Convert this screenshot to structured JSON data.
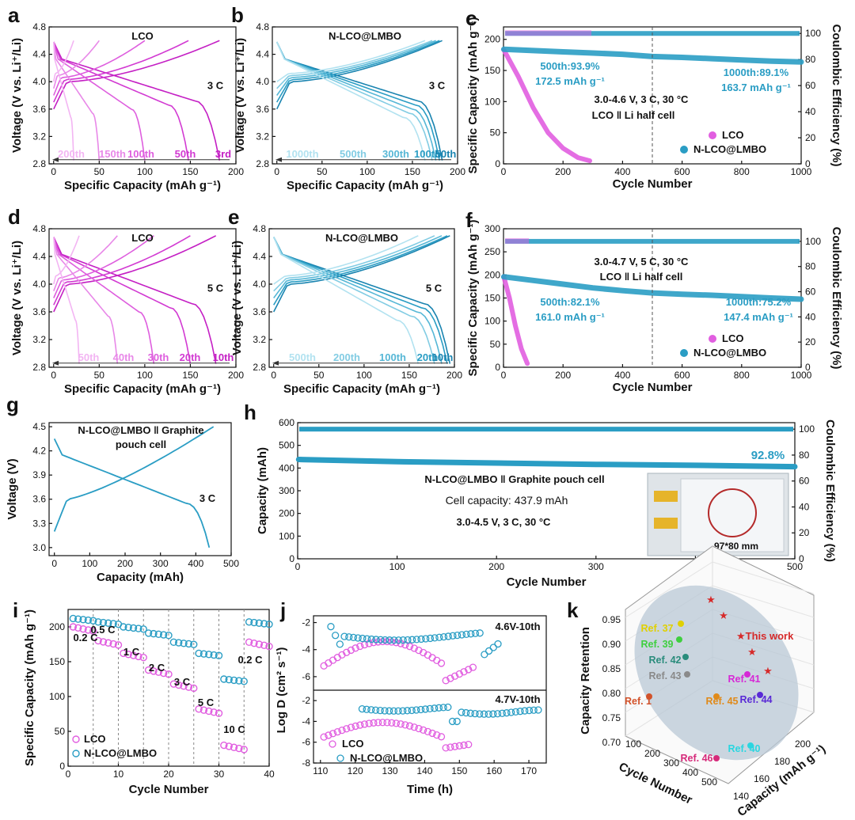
{
  "colors": {
    "pink": "#e15ee0",
    "magenta": "#c41fc4",
    "light_pink": "#f3a8f2",
    "cyan": "#2a9dc4",
    "light_cyan": "#9fdcee",
    "dark": "#111111",
    "red_star": "#d62a2a",
    "ellipse": "#b9c8d6"
  },
  "chart_data": [
    {
      "panel": "a",
      "type": "line",
      "title": "LCO",
      "rate": "3 C",
      "xlabel": "Specific Capacity (mAh g⁻¹)",
      "ylabel": "Voltage (V vs. Li⁺/Li)",
      "xlim": [
        -5,
        200
      ],
      "ylim": [
        2.8,
        4.8
      ],
      "xticks": [
        "0",
        "50",
        "100",
        "150",
        "200"
      ],
      "yticks": [
        "2.8",
        "3.2",
        "3.6",
        "4.0",
        "4.4",
        "4.8"
      ],
      "cycle_labels": [
        "200th",
        "150th",
        "100th",
        "50th",
        "3rd"
      ],
      "series": [
        {
          "name": "3rd",
          "capacity": 182
        },
        {
          "name": "50th",
          "capacity": 148
        },
        {
          "name": "100th",
          "capacity": 100
        },
        {
          "name": "150th",
          "capacity": 50
        },
        {
          "name": "200th",
          "capacity": 22
        }
      ]
    },
    {
      "panel": "b",
      "type": "line",
      "title": "N-LCO@LMBO",
      "rate": "3 C",
      "xlabel": "Specific Capacity (mAh g⁻¹)",
      "ylabel": "Voltage (V vs. Li⁺/Li)",
      "xlim": [
        -5,
        200
      ],
      "ylim": [
        2.8,
        4.8
      ],
      "xticks": [
        "0",
        "50",
        "100",
        "150",
        "200"
      ],
      "yticks": [
        "2.8",
        "3.2",
        "3.6",
        "4.0",
        "4.4",
        "4.8"
      ],
      "cycle_labels": [
        "1000th",
        "500th",
        "300th",
        "100th",
        "50th"
      ],
      "series": [
        {
          "name": "50th",
          "capacity": 183
        },
        {
          "name": "100th",
          "capacity": 180
        },
        {
          "name": "300th",
          "capacity": 176
        },
        {
          "name": "500th",
          "capacity": 172
        },
        {
          "name": "1000th",
          "capacity": 164
        }
      ]
    },
    {
      "panel": "c",
      "type": "scatter",
      "xlabel": "Cycle Number",
      "ylabel": "Specific Capacity (mAh g⁻¹)",
      "y2label": "Coulombic Efficiency (%)",
      "xlim": [
        0,
        1000
      ],
      "ylim": [
        0,
        220
      ],
      "y2lim": [
        0,
        105
      ],
      "xticks": [
        "0",
        "200",
        "400",
        "600",
        "800",
        "1000"
      ],
      "yticks": [
        "0",
        "50",
        "100",
        "150",
        "200"
      ],
      "y2ticks": [
        "0",
        "20",
        "40",
        "60",
        "80",
        "100"
      ],
      "annotations": [
        "500th:93.9%",
        "172.5 mAh g⁻¹",
        "1000th:89.1%",
        "163.7 mAh g⁻¹",
        "3.0-4.6 V, 3 C, 30 °C",
        "LCO ‖ Li half cell"
      ],
      "legend": [
        "LCO",
        "N-LCO@LMBO"
      ],
      "series": [
        {
          "name": "LCO",
          "x": [
            1,
            50,
            100,
            150,
            200,
            250,
            290
          ],
          "y": [
            183,
            140,
            90,
            50,
            25,
            10,
            5
          ]
        },
        {
          "name": "N-LCO@LMBO",
          "x": [
            1,
            100,
            200,
            300,
            400,
            500,
            600,
            700,
            800,
            900,
            1000
          ],
          "y": [
            184,
            182,
            180,
            178,
            176,
            172.5,
            171,
            169,
            167,
            165,
            163.7
          ]
        }
      ]
    },
    {
      "panel": "d",
      "type": "line",
      "title": "LCO",
      "rate": "5 C",
      "xlabel": "Specific Capacity (mAh g⁻¹)",
      "ylabel": "Voltage (V vs. Li⁺/Li)",
      "xlim": [
        -5,
        200
      ],
      "ylim": [
        2.8,
        4.8
      ],
      "xticks": [
        "0",
        "50",
        "100",
        "150",
        "200"
      ],
      "yticks": [
        "2.8",
        "3.2",
        "3.6",
        "4.0",
        "4.4",
        "4.8"
      ],
      "cycle_labels": [
        "50th",
        "40th",
        "30th",
        "20th",
        "10th"
      ],
      "series": [
        {
          "name": "10th",
          "capacity": 178
        },
        {
          "name": "20th",
          "capacity": 150
        },
        {
          "name": "30th",
          "capacity": 110
        },
        {
          "name": "40th",
          "capacity": 70
        },
        {
          "name": "50th",
          "capacity": 28
        }
      ]
    },
    {
      "panel": "e",
      "type": "line",
      "title": "N-LCO@LMBO",
      "rate": "5 C",
      "xlabel": "Specific Capacity (mAh g⁻¹)",
      "ylabel": "Voltage (V vs. Li⁺/Li)",
      "xlim": [
        -5,
        200
      ],
      "ylim": [
        2.8,
        4.8
      ],
      "xticks": [
        "0",
        "50",
        "100",
        "150",
        "200"
      ],
      "yticks": [
        "2.8",
        "3.2",
        "3.6",
        "4.0",
        "4.4",
        "4.8"
      ],
      "cycle_labels": [
        "500th",
        "200th",
        "100th",
        "20th",
        "10th"
      ],
      "series": [
        {
          "name": "10th",
          "capacity": 195
        },
        {
          "name": "20th",
          "capacity": 192
        },
        {
          "name": "100th",
          "capacity": 186
        },
        {
          "name": "200th",
          "capacity": 178
        },
        {
          "name": "500th",
          "capacity": 160
        }
      ]
    },
    {
      "panel": "f",
      "type": "scatter",
      "xlabel": "Cycle Number",
      "ylabel": "Specific Capacity (mAh g⁻¹)",
      "y2label": "Coulombic Efficiency (%)",
      "xlim": [
        0,
        1000
      ],
      "ylim": [
        0,
        300
      ],
      "y2lim": [
        0,
        110
      ],
      "xticks": [
        "0",
        "200",
        "400",
        "600",
        "800",
        "1000"
      ],
      "yticks": [
        "0",
        "50",
        "100",
        "150",
        "200",
        "250",
        "300"
      ],
      "y2ticks": [
        "0",
        "20",
        "40",
        "60",
        "80",
        "100"
      ],
      "annotations": [
        "3.0-4.7 V, 5 C, 30 °C",
        "LCO ‖ Li half cell",
        "500th:82.1%",
        "161.0 mAh g⁻¹",
        "1000th:75.2%",
        "147.4 mAh g⁻¹"
      ],
      "legend": [
        "LCO",
        "N-LCO@LMBO"
      ],
      "series": [
        {
          "name": "LCO",
          "x": [
            1,
            20,
            40,
            60,
            80
          ],
          "y": [
            196,
            150,
            90,
            40,
            8
          ]
        },
        {
          "name": "N-LCO@LMBO",
          "x": [
            1,
            100,
            200,
            300,
            400,
            500,
            600,
            700,
            800,
            900,
            1000
          ],
          "y": [
            196,
            188,
            180,
            172,
            166,
            161,
            158,
            156,
            153,
            150,
            147.4
          ]
        }
      ]
    },
    {
      "panel": "g",
      "type": "line",
      "title_lines": [
        "N-LCO@LMBO ‖ Graphite",
        "pouch cell"
      ],
      "rate": "3 C",
      "xlabel": "Capacity (mAh)",
      "ylabel": "Voltage (V)",
      "xlim": [
        -15,
        500
      ],
      "ylim": [
        2.9,
        4.55
      ],
      "xticks": [
        "0",
        "100",
        "200",
        "300",
        "400",
        "500"
      ],
      "yticks": [
        "3.0",
        "3.3",
        "3.6",
        "3.9",
        "4.2",
        "4.5"
      ]
    },
    {
      "panel": "h",
      "type": "scatter",
      "xlabel": "Cycle Number",
      "ylabel": "Capacity (mAh)",
      "y2label": "Coulombic Efficiency (%)",
      "xlim": [
        0,
        500
      ],
      "ylim": [
        0,
        600
      ],
      "y2lim": [
        0,
        105
      ],
      "xticks": [
        "0",
        "100",
        "200",
        "300",
        "400",
        "500"
      ],
      "yticks": [
        "0",
        "100",
        "200",
        "300",
        "400",
        "500",
        "600"
      ],
      "y2ticks": [
        "0",
        "20",
        "40",
        "60",
        "80",
        "100"
      ],
      "annotations": [
        "N-LCO@LMBO ‖ Graphite pouch cell",
        "Cell capacity: 437.9 mAh",
        "3.0-4.5 V, 3 C, 30 °C",
        "92.8%",
        "97*80 mm"
      ],
      "series": [
        {
          "name": "Capacity",
          "x": [
            1,
            100,
            200,
            300,
            400,
            500
          ],
          "y": [
            437.9,
            428,
            422,
            416,
            412,
            406
          ]
        }
      ]
    },
    {
      "panel": "i",
      "type": "scatter",
      "xlabel": "Cycle Number",
      "ylabel": "Specific Capacity (mAh g⁻¹)",
      "xlim": [
        0,
        40
      ],
      "ylim": [
        0,
        225
      ],
      "xticks": [
        "0",
        "10",
        "20",
        "30",
        "40"
      ],
      "yticks": [
        "0",
        "50",
        "100",
        "150",
        "200"
      ],
      "rate_labels": [
        "0.2 C",
        "0.5 C",
        "1 C",
        "2 C",
        "3 C",
        "5 C",
        "10 C",
        "0.2 C"
      ],
      "legend": [
        "LCO",
        "N-LCO@LMBO"
      ],
      "series": [
        {
          "name": "LCO",
          "values": [
            200,
            180,
            162,
            138,
            118,
            82,
            30,
            178
          ]
        },
        {
          "name": "N-LCO@LMBO",
          "values": [
            212,
            207,
            200,
            191,
            178,
            162,
            125,
            207
          ]
        }
      ]
    },
    {
      "panel": "j",
      "type": "scatter",
      "xlabel": "Time (h)",
      "ylabel": "Log D (cm² s⁻¹)",
      "xticks": [
        "110",
        "120",
        "130",
        "140",
        "150",
        "160",
        "170"
      ],
      "top_label": "4.6V-10th",
      "bottom_label": "4.7V-10th",
      "top_yticks": [
        "-2",
        "-4",
        "-6"
      ],
      "bottom_yticks": [
        "-2",
        "-4",
        "-6",
        "-8"
      ],
      "legend": [
        "LCO",
        "N-LCO@LMBO"
      ]
    },
    {
      "panel": "k",
      "type": "scatter",
      "zlabel": "Capacity Retention",
      "xlabel": "Cycle Number",
      "ylabel": "Capacity (mAh g⁻¹)",
      "zticks": [
        "0.70",
        "0.75",
        "0.80",
        "0.85",
        "0.90",
        "0.95"
      ],
      "xticks": [
        "100",
        "200",
        "300",
        "400",
        "500"
      ],
      "yticks": [
        "140",
        "160",
        "180",
        "200"
      ],
      "points": [
        {
          "label": "Ref. 37",
          "color": "#e0d000"
        },
        {
          "label": "Ref. 39",
          "color": "#3fcf3f"
        },
        {
          "label": "Ref. 42",
          "color": "#2a8c7c"
        },
        {
          "label": "Ref. 43",
          "color": "#8a8a8a"
        },
        {
          "label": "Ref. 41",
          "color": "#d629d6"
        },
        {
          "label": "Ref. 1",
          "color": "#d2522a"
        },
        {
          "label": "Ref. 45",
          "color": "#e08a1a"
        },
        {
          "label": "Ref. 44",
          "color": "#5a2ad6"
        },
        {
          "label": "Ref. 40",
          "color": "#2ad6e0"
        },
        {
          "label": "Ref. 46",
          "color": "#d62a7a"
        }
      ],
      "this_work": "This work"
    }
  ]
}
